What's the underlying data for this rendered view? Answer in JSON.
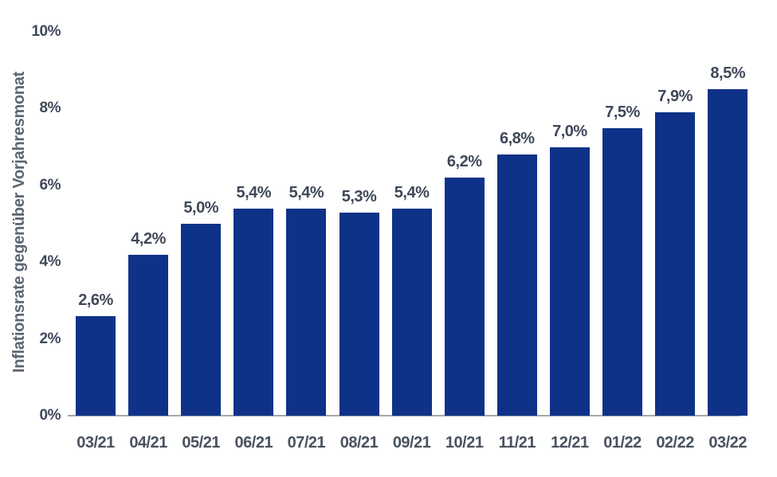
{
  "chart_data": {
    "type": "bar",
    "title": "",
    "xlabel": "",
    "ylabel": "Inflationsrate gegenüber Vorjahresmonat",
    "categories": [
      "03/21",
      "04/21",
      "05/21",
      "06/21",
      "07/21",
      "08/21",
      "09/21",
      "10/21",
      "11/21",
      "12/21",
      "01/22",
      "02/22",
      "03/22"
    ],
    "values": [
      2.6,
      4.2,
      5.0,
      5.4,
      5.4,
      5.3,
      5.4,
      6.2,
      6.8,
      7.0,
      7.5,
      7.9,
      8.5
    ],
    "value_labels": [
      "2,6%",
      "4,2%",
      "5,0%",
      "5,4%",
      "5,4%",
      "5,3%",
      "5,4%",
      "6,2%",
      "6,8%",
      "7,0%",
      "7,5%",
      "7,9%",
      "8,5%"
    ],
    "y_ticks": [
      {
        "label": "0%",
        "value": 0
      },
      {
        "label": "2%",
        "value": 2
      },
      {
        "label": "4%",
        "value": 4
      },
      {
        "label": "6%",
        "value": 6
      },
      {
        "label": "8%",
        "value": 8
      },
      {
        "label": "10%",
        "value": 10
      }
    ],
    "ylim": [
      0,
      10
    ],
    "grid": false,
    "legend": null,
    "colors": {
      "bar": "#0e3288",
      "value_label": "#3f4859",
      "tick_label": "#3f4859",
      "x_label": "#4a525f",
      "axis_title": "#5d6573",
      "axis_line": "#a3a6aa",
      "background": "#ffffff"
    }
  }
}
